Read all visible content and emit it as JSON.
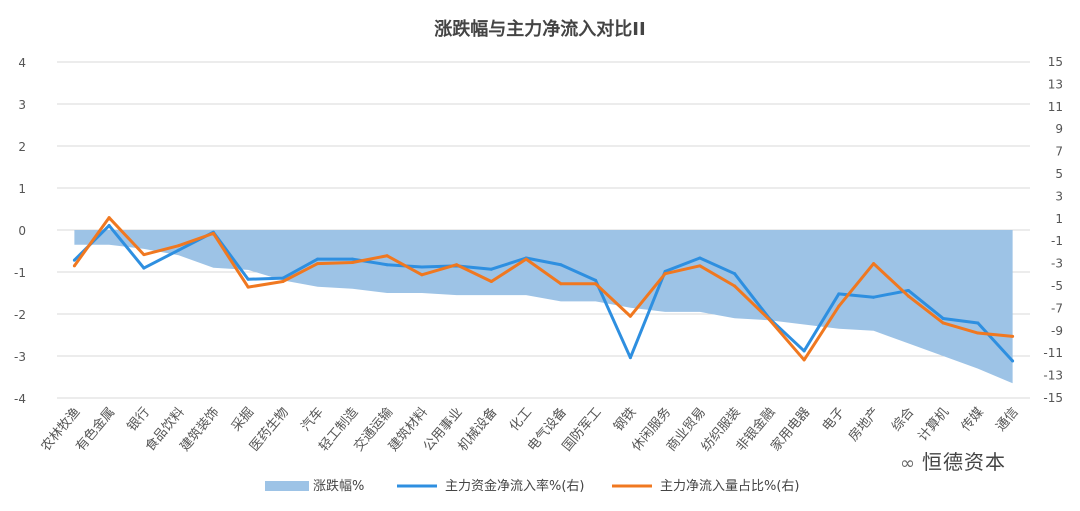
{
  "chart_data": {
    "type": "area+line",
    "title": "涨跌幅与主力净流入对比II",
    "categories": [
      "农林牧渔",
      "有色金属",
      "银行",
      "食品饮料",
      "建筑装饰",
      "采掘",
      "医药生物",
      "汽车",
      "轻工制造",
      "交通运输",
      "建筑材料",
      "公用事业",
      "机械设备",
      "化工",
      "电气设备",
      "国防军工",
      "钢铁",
      "休闲服务",
      "商业贸易",
      "纺织服装",
      "非银金融",
      "家用电器",
      "电子",
      "房地产",
      "综合",
      "计算机",
      "传媒",
      "通信"
    ],
    "left_axis": {
      "ylim": [
        -4,
        4
      ],
      "ticks": [
        "4",
        "3",
        "2",
        "1",
        "0",
        "-1",
        "-2",
        "-3",
        "-4"
      ]
    },
    "right_axis": {
      "ylim": [
        -15,
        15
      ],
      "ticks": [
        "15",
        "13",
        "11",
        "9",
        "7",
        "5",
        "3",
        "1",
        "-1",
        "-3",
        "-5",
        "-7",
        "-9",
        "-11",
        "-13",
        "-15"
      ]
    },
    "series": [
      {
        "name": "涨跌幅%",
        "axis": "left",
        "kind": "area",
        "color": "#9dc3e6",
        "values": [
          -0.35,
          -0.35,
          -0.45,
          -0.6,
          -0.9,
          -0.95,
          -1.2,
          -1.35,
          -1.4,
          -1.5,
          -1.5,
          -1.55,
          -1.55,
          -1.55,
          -1.7,
          -1.7,
          -1.85,
          -1.95,
          -1.95,
          -2.1,
          -2.15,
          -2.25,
          -2.35,
          -2.4,
          -2.7,
          -3.0,
          -3.3,
          -3.65
        ]
      },
      {
        "name": "主力资金净流入率%(右)",
        "axis": "right",
        "kind": "line",
        "color": "#2e8fe0",
        "values": [
          -2.7,
          0.4,
          -3.4,
          -1.8,
          -0.2,
          -4.4,
          -4.3,
          -2.6,
          -2.6,
          -3.1,
          -3.3,
          -3.2,
          -3.5,
          -2.5,
          -3.1,
          -4.5,
          -11.4,
          -3.7,
          -2.5,
          -3.9,
          -7.9,
          -10.8,
          -5.7,
          -6.0,
          -5.4,
          -7.9,
          -8.3,
          -11.7
        ]
      },
      {
        "name": "主力净流入量占比%(右)",
        "axis": "right",
        "kind": "line",
        "color": "#f07820",
        "values": [
          -3.2,
          1.1,
          -2.2,
          -1.4,
          -0.3,
          -5.1,
          -4.6,
          -3.0,
          -2.9,
          -2.3,
          -4.0,
          -3.1,
          -4.6,
          -2.6,
          -4.8,
          -4.8,
          -7.7,
          -3.9,
          -3.2,
          -5.0,
          -8.0,
          -11.6,
          -6.8,
          -3.0,
          -5.9,
          -8.3,
          -9.2,
          -9.5
        ]
      }
    ],
    "grid": true,
    "legend": "bottom"
  },
  "watermark": {
    "text": "恒德资本",
    "icon": "wechat-icon",
    "glyph": "∞"
  }
}
